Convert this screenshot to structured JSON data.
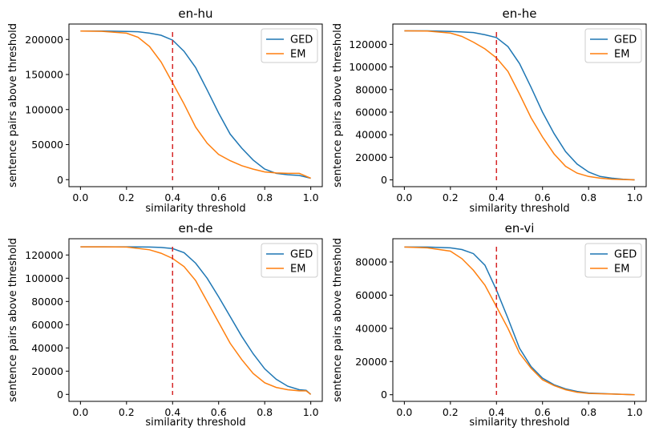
{
  "colors": {
    "ged": "#1f77b4",
    "em": "#ff7f0e",
    "threshold": "#d62728"
  },
  "chart_data": [
    {
      "type": "line",
      "title": "en-hu",
      "xlabel": "similarity threshold",
      "ylabel": "sentence pairs above threshold",
      "xlim": [
        -0.05,
        1.05
      ],
      "ylim": [
        -10000,
        222000
      ],
      "xticks": [
        0.0,
        0.2,
        0.4,
        0.6,
        0.8,
        1.0
      ],
      "xtick_labels": [
        "0.0",
        "0.2",
        "0.4",
        "0.6",
        "0.8",
        "1.0"
      ],
      "yticks": [
        0,
        50000,
        100000,
        150000,
        200000
      ],
      "ytick_labels": [
        "0",
        "50000",
        "100000",
        "150000",
        "200000"
      ],
      "threshold_line": 0.4,
      "legend": "top-right",
      "series": [
        {
          "name": "GED",
          "color_key": "ged",
          "x": [
            0.0,
            0.1,
            0.2,
            0.25,
            0.3,
            0.35,
            0.4,
            0.45,
            0.5,
            0.55,
            0.6,
            0.65,
            0.7,
            0.75,
            0.8,
            0.85,
            0.9,
            0.95,
            1.0
          ],
          "y": [
            212000,
            212000,
            211500,
            211000,
            209000,
            206000,
            199000,
            183000,
            160000,
            128000,
            95000,
            65000,
            45000,
            28000,
            15000,
            9000,
            7000,
            6000,
            2000
          ]
        },
        {
          "name": "EM",
          "color_key": "em",
          "x": [
            0.0,
            0.1,
            0.2,
            0.25,
            0.3,
            0.35,
            0.4,
            0.45,
            0.5,
            0.55,
            0.6,
            0.65,
            0.7,
            0.75,
            0.8,
            0.85,
            0.9,
            0.95,
            1.0
          ],
          "y": [
            212000,
            211500,
            209000,
            203000,
            190000,
            168000,
            138000,
            108000,
            75000,
            52000,
            36000,
            27000,
            20000,
            15000,
            11000,
            9500,
            9000,
            9000,
            2000
          ]
        }
      ]
    },
    {
      "type": "line",
      "title": "en-he",
      "xlabel": "similarity threshold",
      "ylabel": "sentence pairs above threshold",
      "xlim": [
        -0.05,
        1.05
      ],
      "ylim": [
        -6000,
        138000
      ],
      "xticks": [
        0.0,
        0.2,
        0.4,
        0.6,
        0.8,
        1.0
      ],
      "xtick_labels": [
        "0.0",
        "0.2",
        "0.4",
        "0.6",
        "0.8",
        "1.0"
      ],
      "yticks": [
        0,
        20000,
        40000,
        60000,
        80000,
        100000,
        120000
      ],
      "ytick_labels": [
        "0",
        "20000",
        "40000",
        "60000",
        "80000",
        "100000",
        "120000"
      ],
      "threshold_line": 0.4,
      "legend": "top-right",
      "series": [
        {
          "name": "GED",
          "color_key": "ged",
          "x": [
            0.0,
            0.1,
            0.2,
            0.25,
            0.3,
            0.35,
            0.4,
            0.45,
            0.5,
            0.55,
            0.6,
            0.65,
            0.7,
            0.75,
            0.8,
            0.85,
            0.9,
            0.95,
            1.0
          ],
          "y": [
            132000,
            132000,
            131500,
            131000,
            130500,
            128500,
            126000,
            118000,
            103000,
            82000,
            60000,
            41000,
            25000,
            14000,
            7000,
            3000,
            1500,
            500,
            0
          ]
        },
        {
          "name": "EM",
          "color_key": "em",
          "x": [
            0.0,
            0.1,
            0.2,
            0.25,
            0.3,
            0.35,
            0.4,
            0.45,
            0.5,
            0.55,
            0.6,
            0.65,
            0.7,
            0.75,
            0.8,
            0.85,
            0.9,
            0.95,
            1.0
          ],
          "y": [
            132000,
            131800,
            130000,
            127000,
            122000,
            116000,
            108000,
            96000,
            76000,
            55000,
            38000,
            23000,
            12000,
            6000,
            3000,
            1500,
            700,
            300,
            0
          ]
        }
      ]
    },
    {
      "type": "line",
      "title": "en-de",
      "xlabel": "similarity threshold",
      "ylabel": "sentence pairs above threshold",
      "xlim": [
        -0.05,
        1.05
      ],
      "ylim": [
        -6000,
        134000
      ],
      "xticks": [
        0.0,
        0.2,
        0.4,
        0.6,
        0.8,
        1.0
      ],
      "xtick_labels": [
        "0.0",
        "0.2",
        "0.4",
        "0.6",
        "0.8",
        "1.0"
      ],
      "yticks": [
        0,
        20000,
        40000,
        60000,
        80000,
        100000,
        120000
      ],
      "ytick_labels": [
        "0",
        "20000",
        "40000",
        "60000",
        "80000",
        "100000",
        "120000"
      ],
      "threshold_line": 0.4,
      "legend": "top-right",
      "series": [
        {
          "name": "GED",
          "color_key": "ged",
          "x": [
            0.0,
            0.1,
            0.2,
            0.3,
            0.35,
            0.4,
            0.45,
            0.5,
            0.55,
            0.6,
            0.65,
            0.7,
            0.75,
            0.8,
            0.85,
            0.9,
            0.95,
            0.98,
            1.0
          ],
          "y": [
            127000,
            127000,
            127000,
            126800,
            126500,
            125500,
            122000,
            113000,
            100000,
            84000,
            67000,
            50000,
            35000,
            22000,
            13000,
            7000,
            4000,
            3500,
            0
          ]
        },
        {
          "name": "EM",
          "color_key": "em",
          "x": [
            0.0,
            0.1,
            0.2,
            0.3,
            0.35,
            0.4,
            0.45,
            0.5,
            0.55,
            0.6,
            0.65,
            0.7,
            0.75,
            0.8,
            0.85,
            0.9,
            0.95,
            0.98,
            1.0
          ],
          "y": [
            127000,
            127000,
            126800,
            124500,
            121500,
            117000,
            110000,
            98000,
            80000,
            62000,
            44000,
            30000,
            18000,
            10000,
            6000,
            4000,
            3000,
            3000,
            0
          ]
        }
      ]
    },
    {
      "type": "line",
      "title": "en-vi",
      "xlabel": "similarity threshold",
      "ylabel": "sentence pairs above threshold",
      "xlim": [
        -0.05,
        1.05
      ],
      "ylim": [
        -4000,
        94000
      ],
      "xticks": [
        0.0,
        0.2,
        0.4,
        0.6,
        0.8,
        1.0
      ],
      "xtick_labels": [
        "0.0",
        "0.2",
        "0.4",
        "0.6",
        "0.8",
        "1.0"
      ],
      "yticks": [
        0,
        20000,
        40000,
        60000,
        80000
      ],
      "ytick_labels": [
        "0",
        "20000",
        "40000",
        "60000",
        "80000"
      ],
      "threshold_line": 0.4,
      "legend": "top-right",
      "series": [
        {
          "name": "GED",
          "color_key": "ged",
          "x": [
            0.0,
            0.1,
            0.2,
            0.25,
            0.3,
            0.35,
            0.4,
            0.45,
            0.5,
            0.55,
            0.6,
            0.65,
            0.7,
            0.75,
            0.8,
            0.9,
            1.0
          ],
          "y": [
            89000,
            89000,
            88500,
            87500,
            85000,
            78000,
            63000,
            46000,
            28000,
            17000,
            10000,
            6000,
            3500,
            2000,
            1000,
            500,
            0
          ]
        },
        {
          "name": "EM",
          "color_key": "em",
          "x": [
            0.0,
            0.1,
            0.2,
            0.25,
            0.3,
            0.35,
            0.4,
            0.45,
            0.5,
            0.55,
            0.6,
            0.65,
            0.7,
            0.75,
            0.8,
            0.9,
            1.0
          ],
          "y": [
            89000,
            88500,
            86500,
            82000,
            75000,
            66000,
            53000,
            40000,
            25000,
            16000,
            9000,
            5500,
            3000,
            1500,
            800,
            400,
            0
          ]
        }
      ]
    }
  ]
}
